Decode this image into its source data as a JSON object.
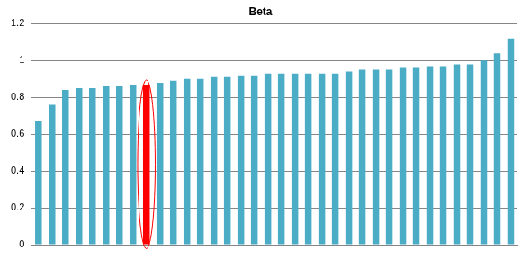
{
  "chart_data": {
    "type": "bar",
    "title": "Beta",
    "categories": [
      null,
      null,
      null,
      null,
      null,
      null,
      null,
      null,
      null,
      null,
      null,
      null,
      null,
      null,
      null,
      null,
      null,
      null,
      null,
      null,
      null,
      null,
      null,
      null,
      null,
      null,
      null,
      null,
      null,
      null,
      null,
      null,
      null,
      null,
      null,
      null
    ],
    "values": [
      0.67,
      0.76,
      0.84,
      0.85,
      0.85,
      0.86,
      0.86,
      0.87,
      0.87,
      0.88,
      0.89,
      0.9,
      0.9,
      0.91,
      0.91,
      0.92,
      0.92,
      0.93,
      0.93,
      0.93,
      0.93,
      0.93,
      0.93,
      0.94,
      0.95,
      0.95,
      0.95,
      0.96,
      0.96,
      0.97,
      0.97,
      0.98,
      0.98,
      1.0,
      1.04,
      1.12
    ],
    "colors": [
      "#4bacc6",
      "#4bacc6",
      "#4bacc6",
      "#4bacc6",
      "#4bacc6",
      "#4bacc6",
      "#4bacc6",
      "#4bacc6",
      "#ff0000",
      "#4bacc6",
      "#4bacc6",
      "#4bacc6",
      "#4bacc6",
      "#4bacc6",
      "#4bacc6",
      "#4bacc6",
      "#4bacc6",
      "#4bacc6",
      "#4bacc6",
      "#4bacc6",
      "#4bacc6",
      "#4bacc6",
      "#4bacc6",
      "#4bacc6",
      "#4bacc6",
      "#4bacc6",
      "#4bacc6",
      "#4bacc6",
      "#4bacc6",
      "#4bacc6",
      "#4bacc6",
      "#4bacc6",
      "#4bacc6",
      "#4bacc6",
      "#4bacc6",
      "#4bacc6"
    ],
    "ylim": [
      0,
      1.2
    ],
    "yticks": [
      0,
      0.2,
      0.4,
      0.6,
      0.8,
      1,
      1.2
    ],
    "grid": true,
    "tick_labels": "y"
  }
}
